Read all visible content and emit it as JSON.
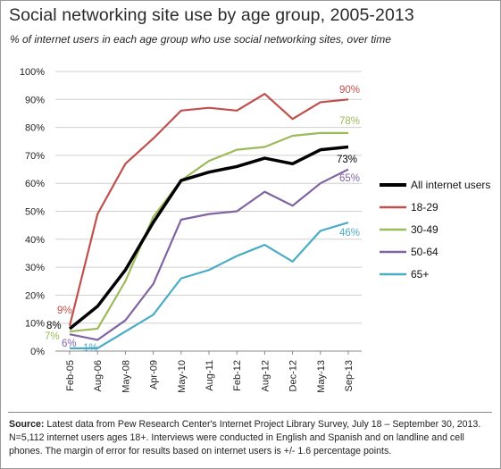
{
  "page": {
    "title": "Social networking site use by age group, 2005-2013",
    "subtitle": "% of internet users in each age group who use social networking sites, over time",
    "source_label": "Source:",
    "source_text": "Latest data from Pew Research Center's Internet Project Library Survey, July 18 – September 30, 2013. N=5,112 internet users ages 18+. Interviews were conducted in English and Spanish and on landline and cell phones.  The margin of error for results based on internet users is +/- 1.6 percentage points."
  },
  "chart_data": {
    "type": "line",
    "title": "Social networking site use by age group, 2005-2013",
    "subtitle": "% of internet users in each age group who use social networking sites, over time",
    "categories": [
      "Feb-05",
      "Aug-06",
      "May-08",
      "Apr-09",
      "May-10",
      "Aug-11",
      "Feb-12",
      "Aug-12",
      "Dec-12",
      "May-13",
      "Sep-13"
    ],
    "ylim": [
      0,
      100
    ],
    "yticks": [
      "0%",
      "10%",
      "20%",
      "30%",
      "40%",
      "50%",
      "60%",
      "70%",
      "80%",
      "90%",
      "100%"
    ],
    "grid": true,
    "legend_position": "right",
    "series": [
      {
        "name": "18-29",
        "color": "#c0504d",
        "values": [
          9,
          49,
          67,
          76,
          86,
          87,
          86,
          92,
          83,
          89,
          90
        ],
        "start_label": "9%",
        "end_label": "90%"
      },
      {
        "name": "30-49",
        "color": "#9bbb59",
        "values": [
          7,
          8,
          25,
          48,
          61,
          68,
          72,
          73,
          77,
          78,
          78
        ],
        "start_label": "7%",
        "end_label": "78%"
      },
      {
        "name": "50-64",
        "color": "#8064a2",
        "values": [
          6,
          4,
          11,
          24,
          47,
          49,
          50,
          57,
          52,
          60,
          65
        ],
        "start_label": "6%",
        "end_label": "65%"
      },
      {
        "name": "65+",
        "color": "#4bacc6",
        "values": [
          1,
          1,
          7,
          13,
          26,
          29,
          34,
          38,
          32,
          43,
          46
        ],
        "start_label": "1%",
        "end_label": "46%"
      },
      {
        "name": "All internet users",
        "color": "#000000",
        "values": [
          8,
          16,
          29,
          46,
          61,
          64,
          66,
          69,
          67,
          72,
          73
        ],
        "start_label": "8%",
        "end_label": "73%"
      }
    ],
    "legend_order": [
      "All internet users",
      "18-29",
      "30-49",
      "50-64",
      "65+"
    ]
  }
}
